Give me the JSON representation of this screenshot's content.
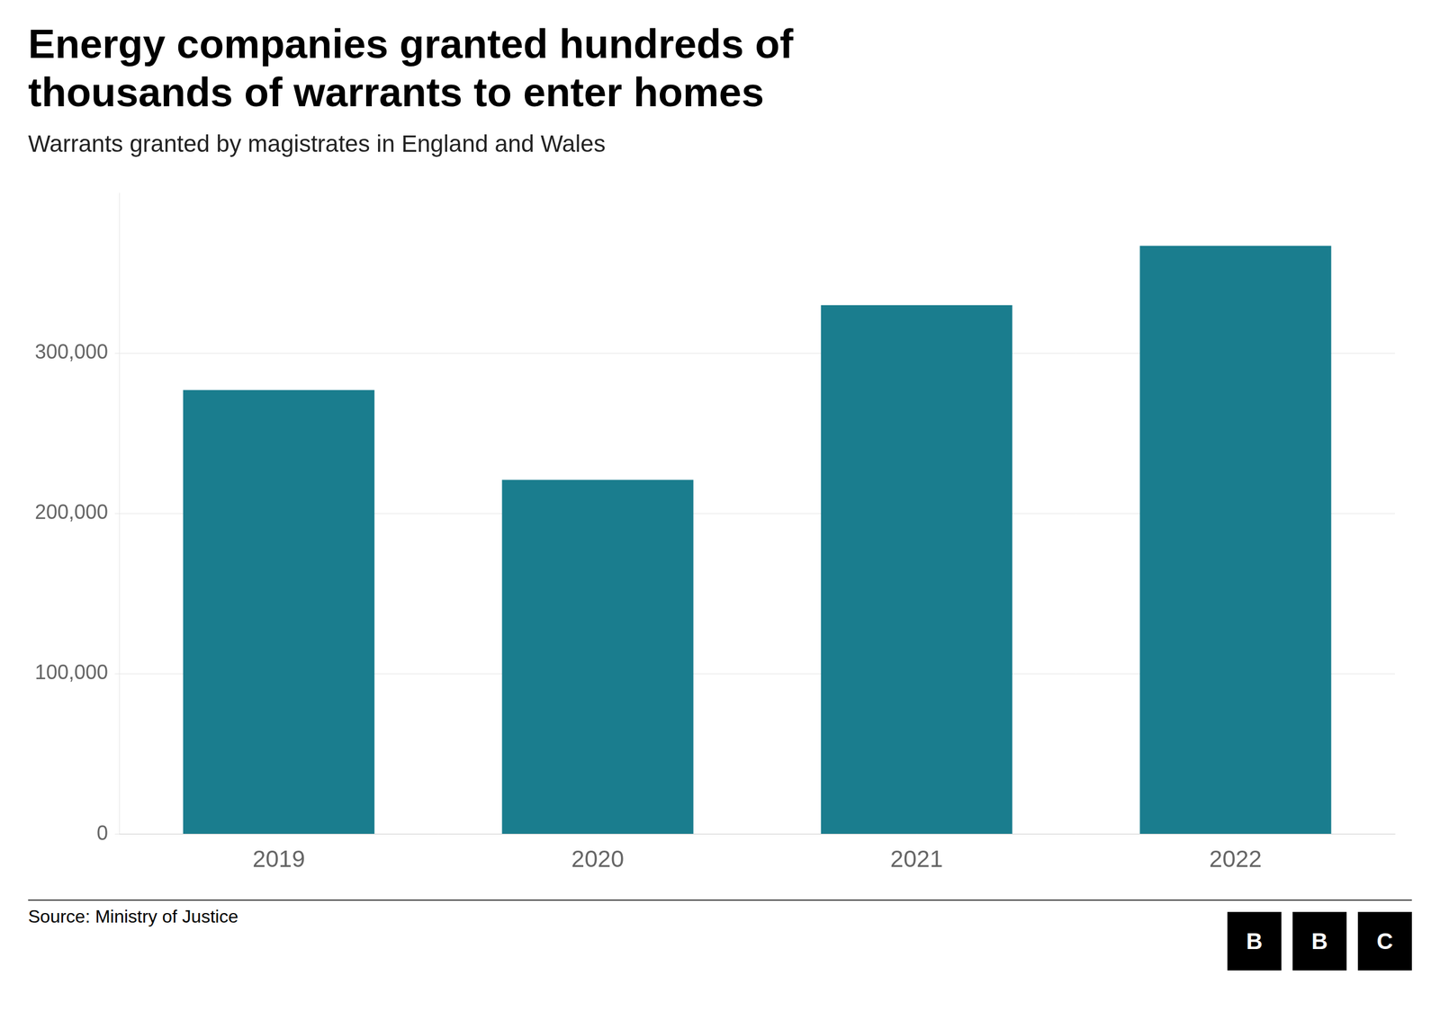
{
  "chart_data": {
    "type": "bar",
    "title": [
      "Energy companies granted hundreds of",
      "thousands of warrants to enter homes"
    ],
    "subtitle": "Warrants granted by magistrates in England and Wales",
    "categories": [
      "2019",
      "2020",
      "2021",
      "2022"
    ],
    "values": [
      277000,
      221000,
      330000,
      367000
    ],
    "color": "#1a7d8e",
    "ylim": [
      0,
      400000
    ],
    "yticks": [
      0,
      {
        "value": 100000,
        "label": "100,000"
      },
      {
        "value": 200000,
        "label": "200,000"
      },
      {
        "value": 300000,
        "label": "300,000"
      }
    ],
    "grid": true,
    "source": "Source: Ministry of Justice",
    "logo": "BBC"
  }
}
